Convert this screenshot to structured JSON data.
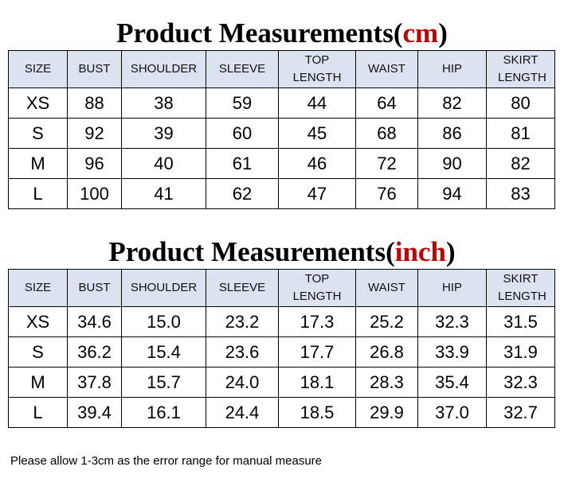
{
  "tables": [
    {
      "title": {
        "main": "Product Measurements(",
        "unit": "cm",
        "close": ")"
      },
      "header": [
        "SIZE",
        "BUST",
        "SHOULDER",
        "SLEEVE",
        "TOP LENGTH",
        "WAIST",
        "HIP",
        "SKIRT LENGTH"
      ],
      "rows": [
        [
          "XS",
          "88",
          "38",
          "59",
          "44",
          "64",
          "82",
          "80"
        ],
        [
          "S",
          "92",
          "39",
          "60",
          "45",
          "68",
          "86",
          "81"
        ],
        [
          "M",
          "96",
          "40",
          "61",
          "46",
          "72",
          "90",
          "82"
        ],
        [
          "L",
          "100",
          "41",
          "62",
          "47",
          "76",
          "94",
          "83"
        ]
      ]
    },
    {
      "title": {
        "main": "Product Measurements(",
        "unit": "inch",
        "close": ")"
      },
      "header": [
        "SIZE",
        "BUST",
        "SHOULDER",
        "SLEEVE",
        "TOP LENGTH",
        "WAIST",
        "HIP",
        "SKIRT LENGTH"
      ],
      "rows": [
        [
          "XS",
          "34.6",
          "15.0",
          "23.2",
          "17.3",
          "25.2",
          "32.3",
          "31.5"
        ],
        [
          "S",
          "36.2",
          "15.4",
          "23.6",
          "17.7",
          "26.8",
          "33.9",
          "31.9"
        ],
        [
          "M",
          "37.8",
          "15.7",
          "24.0",
          "18.1",
          "28.3",
          "35.4",
          "32.3"
        ],
        [
          "L",
          "39.4",
          "16.1",
          "24.4",
          "18.5",
          "29.9",
          "37.0",
          "32.7"
        ]
      ]
    }
  ],
  "footer": "Please allow 1-3cm as the error range for manual measure"
}
